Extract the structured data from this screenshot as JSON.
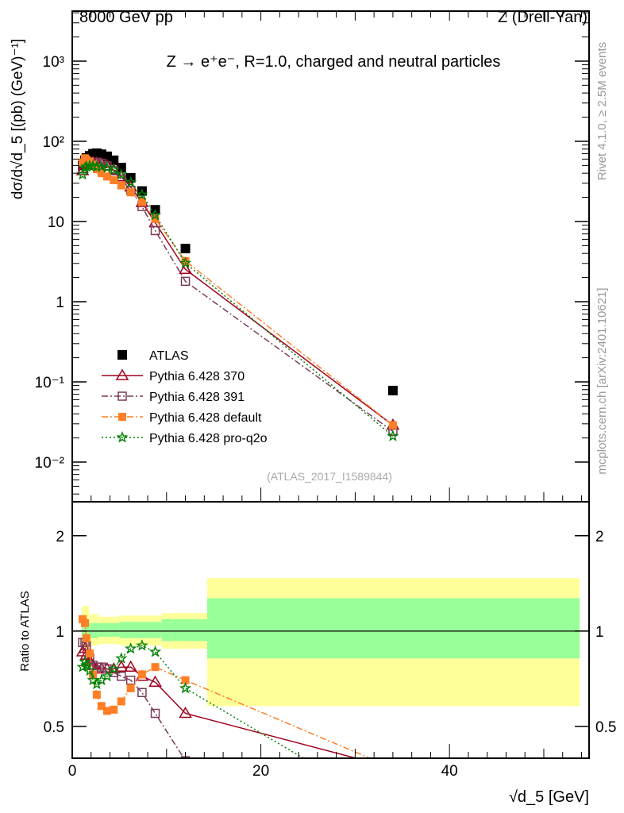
{
  "header": {
    "left": "8000 GeV pp",
    "right": "Z (Drell-Yan)"
  },
  "side": {
    "rivet": "Rivet 4.1.0, ≥ 2.5M events",
    "mcplots": "mcplots.cern.ch [arXiv:2401.10621]"
  },
  "chart_data": [
    {
      "type": "scatter",
      "title": "Z → e⁺e⁻, R=1.0, charged and neutral particles",
      "ylabel": "dσ/d√d_5 [(pb) (GeV)⁻¹]",
      "yscale": "log",
      "ylim": [
        0.0032,
        4200
      ],
      "xlim": [
        0,
        54.8
      ],
      "ytick_labels": [
        "10⁻²",
        "10⁻¹",
        "1",
        "10",
        "10²",
        "10³"
      ],
      "ytick_values": [
        0.01,
        0.1,
        1,
        10,
        100,
        1000
      ],
      "analysis": "(ATLAS_2017_I1589844)",
      "legend_position": "bottom-left",
      "x": [
        1.1,
        1.35,
        1.5,
        1.85,
        2.2,
        2.6,
        3.1,
        3.7,
        4.4,
        5.2,
        6.2,
        7.4,
        8.8,
        12.0,
        34.0
      ],
      "series": [
        {
          "name": "ATLAS",
          "color": "#000000",
          "marker": "square",
          "values": [
            50,
            58,
            62,
            66,
            70,
            71,
            69,
            65,
            58,
            47,
            35,
            24,
            14,
            4.6,
            0.078
          ]
        },
        {
          "name": "Pythia 6.428 370",
          "color": "#a0001e",
          "marker": "triangle",
          "dash": "",
          "ratio": [
            0.86,
            0.88,
            0.84,
            0.8,
            0.78,
            0.76,
            0.76,
            0.76,
            0.76,
            0.77,
            0.77,
            0.72,
            0.69,
            0.55,
            0.37
          ]
        },
        {
          "name": "Pythia 6.428 391",
          "color": "#7a3a5a",
          "marker": "open-square",
          "dash": "8,3,2,3",
          "ratio": [
            0.92,
            0.92,
            0.9,
            0.82,
            0.78,
            0.77,
            0.77,
            0.76,
            0.74,
            0.72,
            0.7,
            0.64,
            0.55,
            0.39,
            0.31
          ]
        },
        {
          "name": "Pythia 6.428 default",
          "color": "#ff7f27",
          "marker": "filled-square",
          "dash": "8,3,2,3",
          "ratio": [
            1.09,
            1.06,
            0.95,
            0.85,
            0.73,
            0.63,
            0.58,
            0.56,
            0.565,
            0.6,
            0.66,
            0.73,
            0.77,
            0.7,
            0.37
          ]
        },
        {
          "name": "Pythia 6.428 pro-q2o",
          "color": "#008000",
          "marker": "star",
          "dash": "2,3",
          "ratio": [
            0.77,
            0.8,
            0.78,
            0.75,
            0.7,
            0.68,
            0.7,
            0.72,
            0.76,
            0.82,
            0.88,
            0.9,
            0.86,
            0.66,
            0.27
          ]
        }
      ]
    },
    {
      "type": "line",
      "ylabel": "Ratio to ATLAS",
      "yscale": "log",
      "ylim": [
        0.397,
        2.56
      ],
      "xlim": [
        0,
        54.8
      ],
      "xlabel": "√d_5 [GeV]",
      "xtick_labels": [
        "0",
        "20",
        "40"
      ],
      "xtick_values": [
        0,
        20,
        40
      ],
      "ytick_labels": [
        "0.5",
        "1",
        "2"
      ],
      "ytick_values": [
        0.5,
        1,
        2
      ],
      "bands": [
        {
          "x0": 1.0,
          "x1": 1.8,
          "y_lo": 0.88,
          "y_hi": 1.2,
          "g_lo": 0.93,
          "g_hi": 1.09
        },
        {
          "x0": 1.8,
          "x1": 2.8,
          "y_lo": 0.9,
          "y_hi": 1.13,
          "g_lo": 0.95,
          "g_hi": 1.06
        },
        {
          "x0": 2.8,
          "x1": 5.0,
          "y_lo": 0.91,
          "y_hi": 1.11,
          "g_lo": 0.96,
          "g_hi": 1.06
        },
        {
          "x0": 5.0,
          "x1": 9.5,
          "y_lo": 0.9,
          "y_hi": 1.12,
          "g_lo": 0.95,
          "g_hi": 1.07
        },
        {
          "x0": 9.5,
          "x1": 14.3,
          "y_lo": 0.88,
          "y_hi": 1.14,
          "g_lo": 0.93,
          "g_hi": 1.09
        },
        {
          "x0": 14.3,
          "x1": 53.8,
          "y_lo": 0.58,
          "y_hi": 1.47,
          "g_lo": 0.82,
          "g_hi": 1.27
        }
      ]
    }
  ]
}
